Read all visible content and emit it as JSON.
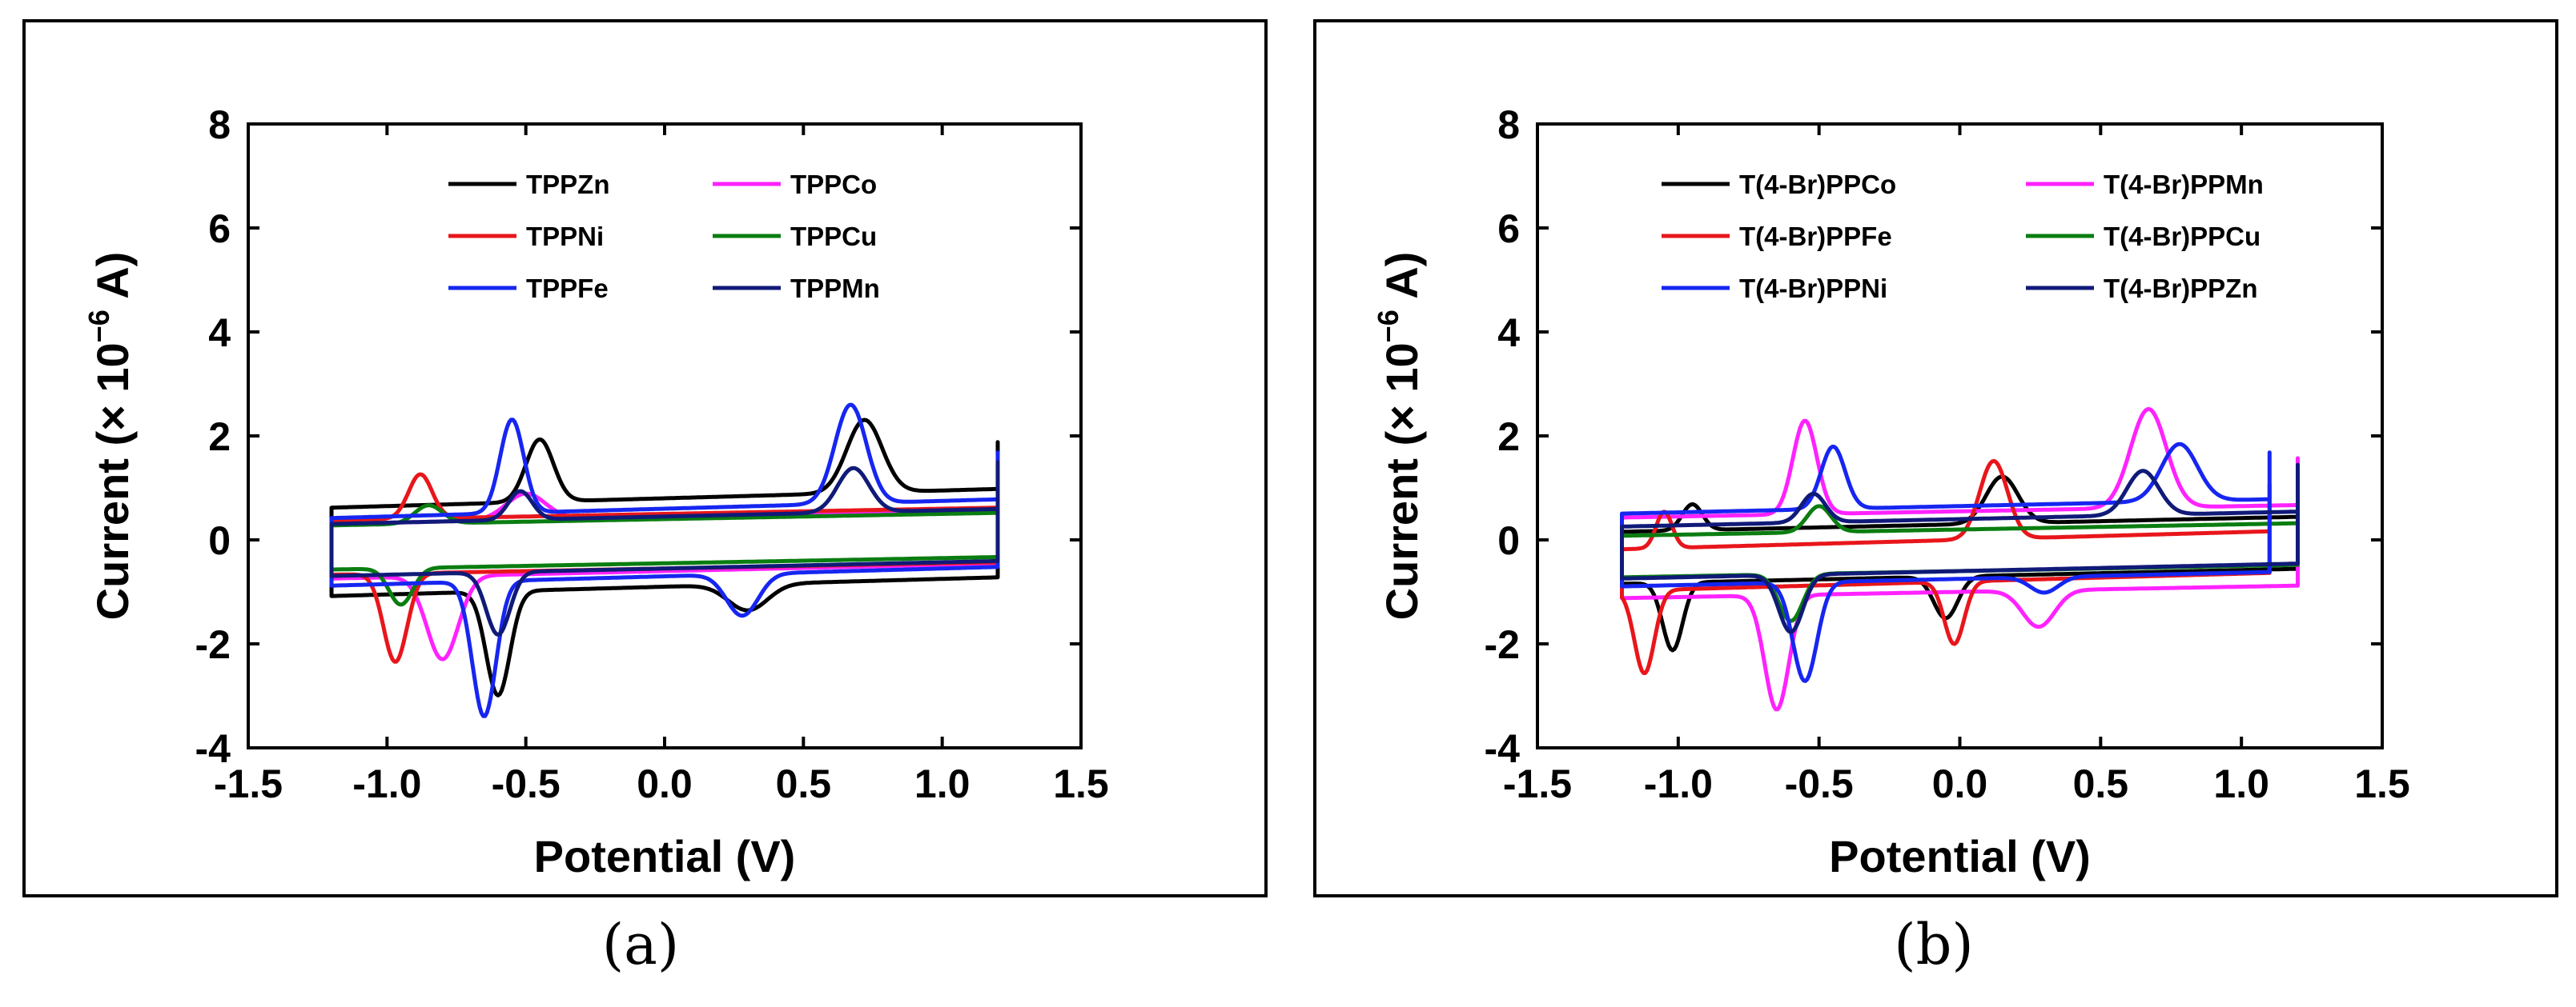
{
  "colors": {
    "black": "#000000",
    "red": "#e8161b",
    "magenta": "#ff22ff",
    "green": "#0a7d10",
    "blue": "#1626f0",
    "navy": "#101a78"
  },
  "chart_data": [
    {
      "type": "line",
      "panel_label": "(a)",
      "xlabel": "Potential (V)",
      "ylabel": "Current (× 10⁻⁶ A)",
      "ylabel_parts": {
        "prefix": "Current (× 10",
        "exponent": "−6",
        "suffix": " A)"
      },
      "xlim": [
        -1.5,
        1.5
      ],
      "ylim": [
        -4,
        8
      ],
      "xticks": [
        -1.5,
        -1.0,
        -0.5,
        0.0,
        0.5,
        1.0,
        1.5
      ],
      "xtick_labels": [
        "-1.5",
        "-1.0",
        "-0.5",
        "0.0",
        "0.5",
        "1.0",
        "1.5"
      ],
      "yticks": [
        -4,
        -2,
        0,
        2,
        4,
        6,
        8
      ],
      "ytick_labels": [
        "-4",
        "-2",
        "0",
        "2",
        "4",
        "6",
        "8"
      ],
      "legend_position": "top-center",
      "legend_columns": 2,
      "series": [
        {
          "name": "TPPZn",
          "color": "black",
          "x_range": [
            -1.2,
            1.2
          ],
          "i_forward": 0.8,
          "i_backward": -0.9,
          "slope": 0.15,
          "peaks": [
            {
              "ep": -0.45,
              "ip": 1.2,
              "w": 0.07,
              "dir": "f"
            },
            {
              "ep": 0.72,
              "ip": 1.4,
              "w": 0.09,
              "dir": "f"
            },
            {
              "ep": -0.6,
              "ip": -2.0,
              "w": 0.06,
              "dir": "b"
            },
            {
              "ep": 0.3,
              "ip": -0.5,
              "w": 0.1,
              "dir": "b"
            }
          ]
        },
        {
          "name": "TPPCo",
          "color": "magenta",
          "x_range": [
            -1.2,
            1.2
          ],
          "i_forward": 0.45,
          "i_backward": -0.6,
          "slope": 0.12,
          "peaks": [
            {
              "ep": -0.5,
              "ip": 0.5,
              "w": 0.1,
              "dir": "f"
            },
            {
              "ep": -0.8,
              "ip": -1.6,
              "w": 0.08,
              "dir": "b"
            }
          ]
        },
        {
          "name": "TPPNi",
          "color": "red",
          "x_range": [
            -1.2,
            1.2
          ],
          "i_forward": 0.5,
          "i_backward": -0.55,
          "slope": 0.1,
          "peaks": [
            {
              "ep": -0.88,
              "ip": 0.85,
              "w": 0.06,
              "dir": "f"
            },
            {
              "ep": -0.97,
              "ip": -1.7,
              "w": 0.06,
              "dir": "b"
            }
          ]
        },
        {
          "name": "TPPCu",
          "color": "green",
          "x_range": [
            -1.2,
            1.2
          ],
          "i_forward": 0.4,
          "i_backward": -0.45,
          "slope": 0.1,
          "peaks": [
            {
              "ep": -0.85,
              "ip": 0.35,
              "w": 0.07,
              "dir": "f"
            },
            {
              "ep": -0.95,
              "ip": -0.7,
              "w": 0.06,
              "dir": "b"
            }
          ]
        },
        {
          "name": "TPPFe",
          "color": "blue",
          "x_range": [
            -1.2,
            1.2
          ],
          "i_forward": 0.6,
          "i_backward": -0.7,
          "slope": 0.15,
          "peaks": [
            {
              "ep": -0.55,
              "ip": 1.8,
              "w": 0.06,
              "dir": "f"
            },
            {
              "ep": 0.67,
              "ip": 1.9,
              "w": 0.08,
              "dir": "f"
            },
            {
              "ep": -0.65,
              "ip": -2.6,
              "w": 0.06,
              "dir": "b"
            },
            {
              "ep": 0.28,
              "ip": -0.8,
              "w": 0.08,
              "dir": "b"
            }
          ]
        },
        {
          "name": "TPPMn",
          "color": "navy",
          "x_range": [
            -1.2,
            1.2
          ],
          "i_forward": 0.45,
          "i_backward": -0.55,
          "slope": 0.12,
          "peaks": [
            {
              "ep": -0.52,
              "ip": 0.55,
              "w": 0.06,
              "dir": "f"
            },
            {
              "ep": 0.68,
              "ip": 0.85,
              "w": 0.08,
              "dir": "f"
            },
            {
              "ep": -0.6,
              "ip": -1.2,
              "w": 0.06,
              "dir": "b"
            }
          ]
        }
      ]
    },
    {
      "type": "line",
      "panel_label": "(b)",
      "xlabel": "Potential (V)",
      "ylabel": "Current (× 10⁻⁶ A)",
      "ylabel_parts": {
        "prefix": "Current (× 10",
        "exponent": "−6",
        "suffix": " A)"
      },
      "xlim": [
        -1.5,
        1.5
      ],
      "ylim": [
        -4,
        8
      ],
      "xticks": [
        -1.5,
        -1.0,
        -0.5,
        0.0,
        0.5,
        1.0,
        1.5
      ],
      "xtick_labels": [
        "-1.5",
        "-1.0",
        "-0.5",
        "0.0",
        "0.5",
        "1.0",
        "1.5"
      ],
      "yticks": [
        -4,
        -2,
        0,
        2,
        4,
        6,
        8
      ],
      "ytick_labels": [
        "-4",
        "-2",
        "0",
        "2",
        "4",
        "6",
        "8"
      ],
      "legend_position": "top-center",
      "legend_columns": 2,
      "series": [
        {
          "name": "T(4-Br)PPCo",
          "color": "black",
          "x_range": [
            -1.2,
            1.2
          ],
          "i_forward": 0.3,
          "i_backward": -0.7,
          "slope": 0.12,
          "peaks": [
            {
              "ep": -0.95,
              "ip": 0.5,
              "w": 0.05,
              "dir": "f"
            },
            {
              "ep": 0.15,
              "ip": 0.9,
              "w": 0.08,
              "dir": "f"
            },
            {
              "ep": -1.02,
              "ip": -1.3,
              "w": 0.05,
              "dir": "b"
            },
            {
              "ep": -0.05,
              "ip": -0.8,
              "w": 0.06,
              "dir": "b"
            }
          ]
        },
        {
          "name": "T(4-Br)PPMn",
          "color": "magenta",
          "x_range": [
            -1.2,
            1.2
          ],
          "i_forward": 0.55,
          "i_backward": -1.0,
          "slope": 0.1,
          "peaks": [
            {
              "ep": -0.55,
              "ip": 1.8,
              "w": 0.06,
              "dir": "f"
            },
            {
              "ep": 0.67,
              "ip": 1.9,
              "w": 0.09,
              "dir": "f"
            },
            {
              "ep": -0.65,
              "ip": -2.2,
              "w": 0.06,
              "dir": "b"
            },
            {
              "ep": 0.28,
              "ip": -0.7,
              "w": 0.08,
              "dir": "b"
            }
          ]
        },
        {
          "name": "T(4-Br)PPFe",
          "color": "red",
          "x_range": [
            -1.2,
            1.1
          ],
          "i_forward": 0.0,
          "i_backward": -0.8,
          "slope": 0.15,
          "peaks": [
            {
              "ep": -1.05,
              "ip": 0.7,
              "w": 0.04,
              "dir": "f"
            },
            {
              "ep": 0.12,
              "ip": 1.5,
              "w": 0.07,
              "dir": "f"
            },
            {
              "ep": -1.12,
              "ip": -1.6,
              "w": 0.05,
              "dir": "b"
            },
            {
              "ep": -0.02,
              "ip": -1.2,
              "w": 0.05,
              "dir": "b"
            }
          ]
        },
        {
          "name": "T(4-Br)PPCu",
          "color": "green",
          "x_range": [
            -1.2,
            1.2
          ],
          "i_forward": 0.2,
          "i_backward": -0.6,
          "slope": 0.1,
          "peaks": [
            {
              "ep": -0.5,
              "ip": 0.5,
              "w": 0.06,
              "dir": "f"
            },
            {
              "ep": -0.6,
              "ip": -0.9,
              "w": 0.06,
              "dir": "b"
            }
          ]
        },
        {
          "name": "T(4-Br)PPNi",
          "color": "blue",
          "x_range": [
            -1.2,
            1.1
          ],
          "i_forward": 0.65,
          "i_backward": -0.75,
          "slope": 0.12,
          "peaks": [
            {
              "ep": -0.45,
              "ip": 1.2,
              "w": 0.06,
              "dir": "f"
            },
            {
              "ep": 0.78,
              "ip": 1.1,
              "w": 0.09,
              "dir": "f"
            },
            {
              "ep": -0.55,
              "ip": -1.9,
              "w": 0.06,
              "dir": "b"
            },
            {
              "ep": 0.3,
              "ip": -0.3,
              "w": 0.07,
              "dir": "b"
            }
          ]
        },
        {
          "name": "T(4-Br)PPZn",
          "color": "navy",
          "x_range": [
            -1.2,
            1.2
          ],
          "i_forward": 0.4,
          "i_backward": -0.6,
          "slope": 0.12,
          "peaks": [
            {
              "ep": -0.52,
              "ip": 0.55,
              "w": 0.06,
              "dir": "f"
            },
            {
              "ep": 0.65,
              "ip": 0.85,
              "w": 0.08,
              "dir": "f"
            },
            {
              "ep": -0.6,
              "ip": -1.1,
              "w": 0.06,
              "dir": "b"
            }
          ]
        }
      ]
    }
  ]
}
